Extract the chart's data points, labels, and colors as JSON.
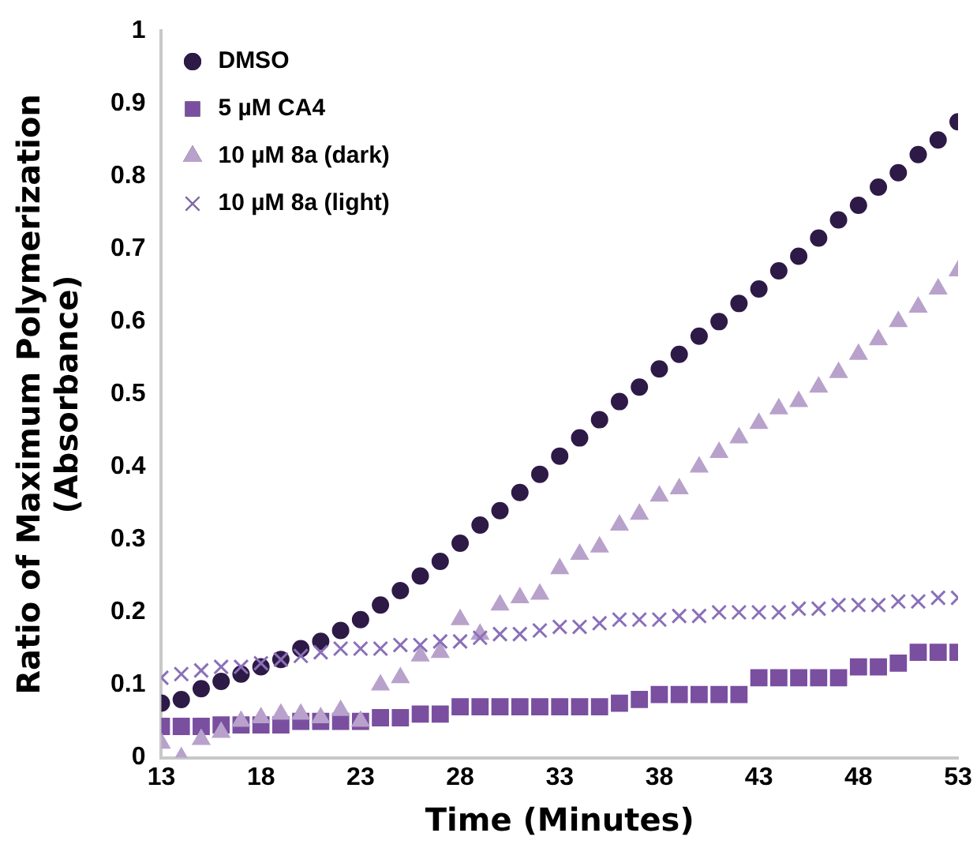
{
  "chart_data": {
    "type": "scatter",
    "xlabel": "Time (Minutes)",
    "ylabel": "Ratio of Maximum Polymerization (Absorbance)",
    "x": [
      13,
      14,
      15,
      16,
      17,
      18,
      19,
      20,
      21,
      22,
      23,
      24,
      25,
      26,
      27,
      28,
      29,
      30,
      31,
      32,
      33,
      34,
      35,
      36,
      37,
      38,
      39,
      40,
      41,
      42,
      43,
      44,
      45,
      46,
      47,
      48,
      49,
      50,
      51,
      52,
      53
    ],
    "series": [
      {
        "name": "DMSO",
        "color": "#2e1a47",
        "marker": "circle",
        "values": [
          0.075,
          0.08,
          0.095,
          0.105,
          0.115,
          0.125,
          0.135,
          0.15,
          0.16,
          0.175,
          0.19,
          0.21,
          0.23,
          0.25,
          0.27,
          0.295,
          0.32,
          0.34,
          0.365,
          0.39,
          0.415,
          0.44,
          0.465,
          0.49,
          0.51,
          0.535,
          0.555,
          0.58,
          0.6,
          0.625,
          0.645,
          0.67,
          0.69,
          0.715,
          0.74,
          0.76,
          0.785,
          0.805,
          0.83,
          0.85,
          0.875
        ]
      },
      {
        "name": "5 µM CA4",
        "color": "#7a4fa0",
        "marker": "square",
        "values": [
          0.043,
          0.043,
          0.043,
          0.045,
          0.045,
          0.045,
          0.045,
          0.05,
          0.05,
          0.05,
          0.05,
          0.055,
          0.055,
          0.06,
          0.06,
          0.07,
          0.07,
          0.07,
          0.07,
          0.07,
          0.07,
          0.07,
          0.07,
          0.075,
          0.08,
          0.087,
          0.087,
          0.087,
          0.087,
          0.087,
          0.11,
          0.11,
          0.11,
          0.11,
          0.11,
          0.125,
          0.125,
          0.13,
          0.145,
          0.145,
          0.145
        ]
      },
      {
        "name": "10 µM 8a (dark)",
        "color": "#b8a2cc",
        "marker": "triangle",
        "values": [
          0.02,
          0,
          0.025,
          0.035,
          0.05,
          0.055,
          0.06,
          0.06,
          0.055,
          0.065,
          0.05,
          0.1,
          0.11,
          0.14,
          0.145,
          0.19,
          0.17,
          0.21,
          0.22,
          0.225,
          0.26,
          0.28,
          0.29,
          0.32,
          0.335,
          0.36,
          0.37,
          0.4,
          0.42,
          0.44,
          0.46,
          0.48,
          0.49,
          0.51,
          0.53,
          0.555,
          0.575,
          0.6,
          0.62,
          0.645,
          0.67
        ]
      },
      {
        "name": "10 µM 8a (light)",
        "color": "#8a70b8",
        "marker": "cross",
        "values": [
          0.11,
          0.115,
          0.12,
          0.125,
          0.125,
          0.13,
          0.135,
          0.14,
          0.145,
          0.15,
          0.15,
          0.15,
          0.155,
          0.155,
          0.16,
          0.16,
          0.165,
          0.17,
          0.17,
          0.175,
          0.18,
          0.18,
          0.185,
          0.19,
          0.19,
          0.19,
          0.195,
          0.195,
          0.2,
          0.2,
          0.2,
          0.2,
          0.205,
          0.205,
          0.21,
          0.21,
          0.21,
          0.215,
          0.215,
          0.22,
          0.22
        ]
      }
    ],
    "xlim": [
      13,
      53
    ],
    "xticks": [
      13,
      18,
      23,
      28,
      33,
      38,
      43,
      48,
      53
    ],
    "ylim": [
      0,
      1
    ],
    "yticks": [
      0,
      0.1,
      0.2,
      0.3,
      0.4,
      0.5,
      0.6,
      0.7,
      0.8,
      0.9,
      1
    ],
    "grid": false,
    "legend": "top left"
  }
}
